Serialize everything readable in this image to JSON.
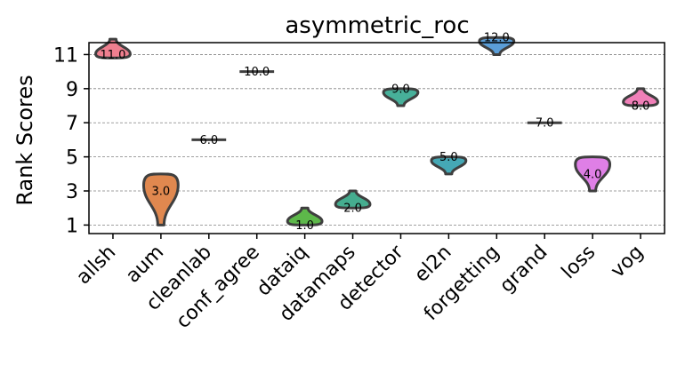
{
  "chart_data": {
    "type": "violin",
    "title": "asymmetric_roc",
    "xlabel": "",
    "ylabel": "Rank Scores",
    "y_inverted": true,
    "ylim": [
      11.7,
      0.5
    ],
    "yticks": [
      1,
      3,
      5,
      7,
      9,
      11
    ],
    "grid": "horizontal dashed",
    "categories": [
      "allsh",
      "aum",
      "cleanlab",
      "conf_agree",
      "dataiq",
      "datamaps",
      "detector",
      "el2n",
      "forgetting",
      "grand",
      "loss",
      "vog"
    ],
    "series": [
      {
        "category": "allsh",
        "median": 11.0,
        "label": "11.0",
        "min": 10.8,
        "max": 11.9,
        "color": "#ef7f8f"
      },
      {
        "category": "aum",
        "median": 3.0,
        "label": "3.0",
        "min": 1.0,
        "max": 4.0,
        "color": "#e0884f"
      },
      {
        "category": "cleanlab",
        "median": 6.0,
        "label": "6.0",
        "min": 6.0,
        "max": 6.0,
        "color": "#b8a040"
      },
      {
        "category": "conf_agree",
        "median": 10.0,
        "label": "10.0",
        "min": 10.0,
        "max": 10.0,
        "color": "#9aa83e"
      },
      {
        "category": "dataiq",
        "median": 1.0,
        "label": "1.0",
        "min": 1.0,
        "max": 2.0,
        "color": "#5db84a"
      },
      {
        "category": "datamaps",
        "median": 2.0,
        "label": "2.0",
        "min": 2.0,
        "max": 3.0,
        "color": "#45ad8f"
      },
      {
        "category": "detector",
        "median": 9.0,
        "label": "9.0",
        "min": 8.0,
        "max": 9.0,
        "color": "#47b09a"
      },
      {
        "category": "el2n",
        "median": 5.0,
        "label": "5.0",
        "min": 4.0,
        "max": 5.0,
        "color": "#45a8b5"
      },
      {
        "category": "forgetting",
        "median": 12.0,
        "label": "12.0",
        "min": 11.0,
        "max": 12.0,
        "color": "#5b9ed8"
      },
      {
        "category": "grand",
        "median": 7.0,
        "label": "7.0",
        "min": 7.0,
        "max": 7.0,
        "color": "#a98fe0"
      },
      {
        "category": "loss",
        "median": 4.0,
        "label": "4.0",
        "min": 3.0,
        "max": 5.0,
        "color": "#df7fe6"
      },
      {
        "category": "vog",
        "median": 8.0,
        "label": "8.0",
        "min": 8.0,
        "max": 9.0,
        "color": "#f07fb8"
      }
    ]
  }
}
